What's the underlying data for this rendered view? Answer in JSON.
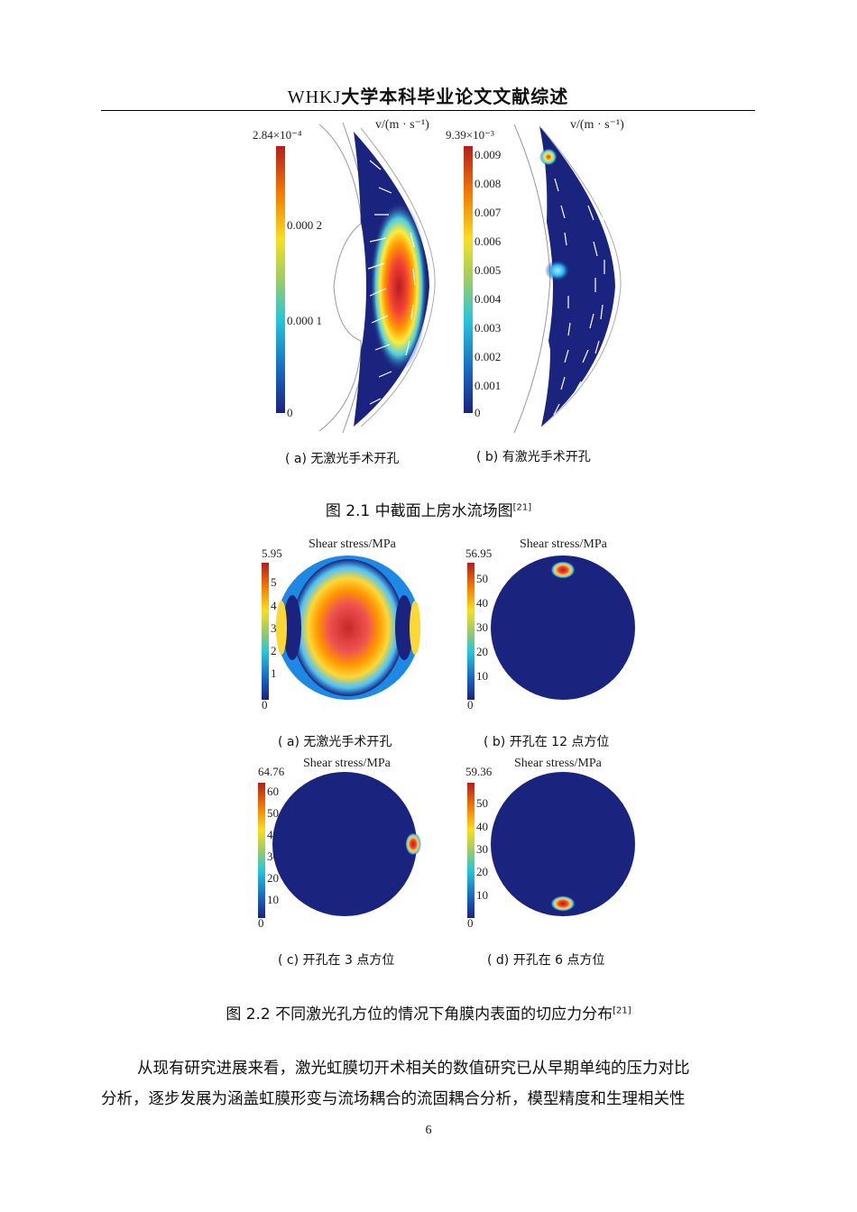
{
  "header": {
    "latin": "WHKJ",
    "title": "大学本科毕业论文文献综述"
  },
  "figure1": {
    "panel_a": {
      "unit_label": "v/(m · s⁻¹)",
      "max_label": "2.84×10⁻⁴",
      "ticks": [
        "0.000 2",
        "0.000 1",
        "0"
      ],
      "sublabel_tag": "( a)",
      "sublabel": "无激光手术开孔"
    },
    "panel_b": {
      "unit_label": "v/(m · s⁻¹)",
      "max_label": "9.39×10⁻³",
      "ticks": [
        "0.009",
        "0.008",
        "0.007",
        "0.006",
        "0.005",
        "0.004",
        "0.003",
        "0.002",
        "0.001",
        "0"
      ],
      "sublabel_tag": "( b)",
      "sublabel": "有激光手术开孔"
    },
    "caption": "图 2.1  中截面上房水流场图",
    "caption_ref": "[21]"
  },
  "figure2": {
    "panel_a": {
      "title": "Shear stress/MPa",
      "max_label": "5.95",
      "ticks": [
        "5",
        "4",
        "3",
        "2",
        "1",
        "0"
      ],
      "sublabel_tag": "( a)",
      "sublabel": "无激光手术开孔"
    },
    "panel_b": {
      "title": "Shear stress/MPa",
      "max_label": "56.95",
      "ticks": [
        "50",
        "40",
        "30",
        "20",
        "10",
        "0"
      ],
      "sublabel_tag": "( b)",
      "sublabel": "开孔在 12 点方位"
    },
    "panel_c": {
      "title": "Shear stress/MPa",
      "max_label": "64.76",
      "ticks": [
        "60",
        "50",
        "40",
        "30",
        "20",
        "10",
        "0"
      ],
      "sublabel_tag": "( c)",
      "sublabel": "开孔在 3 点方位"
    },
    "panel_d": {
      "title": "Shear stress/MPa",
      "max_label": "59.36",
      "ticks": [
        "50",
        "40",
        "30",
        "20",
        "10",
        "0"
      ],
      "sublabel_tag": "( d)",
      "sublabel": "开孔在 6 点方位"
    },
    "caption": "图 2.2  不同激光孔方位的情况下角膜内表面的切应力分布",
    "caption_ref": "[21]"
  },
  "body": {
    "line1": "从现有研究进展来看，激光虹膜切开术相关的数值研究已从早期单纯的压力对比",
    "line2": "分析，逐步发展为涵盖虹膜形变与流场耦合的流固耦合分析，模型精度和生理相关性"
  },
  "page_number": "6",
  "colors": {
    "jet_low": "#1a237e",
    "jet_mid": "#f5e020",
    "jet_high": "#b71c1c"
  }
}
